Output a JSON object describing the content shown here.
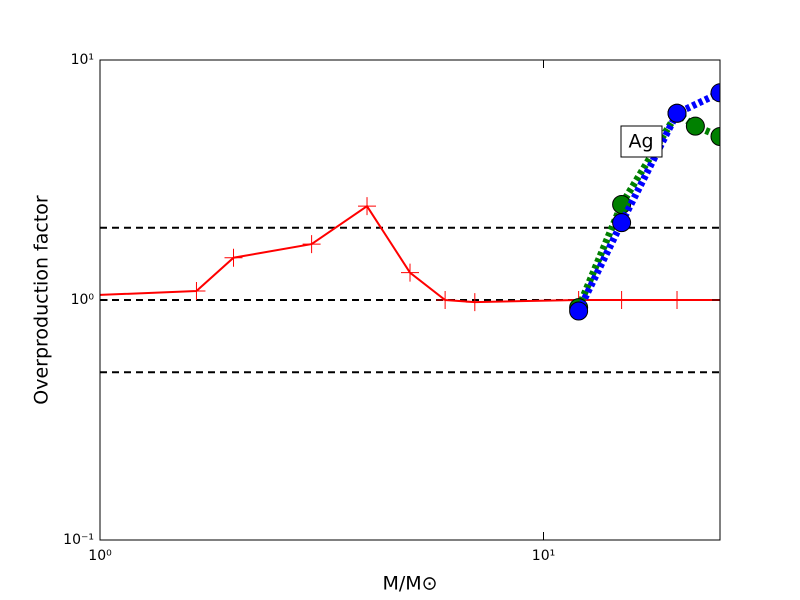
{
  "chart_data": {
    "type": "line",
    "x_label": "M/M⊙",
    "y_label": "Overproduction factor",
    "annotation": "Ag",
    "xscale": "log",
    "yscale": "log",
    "xlim": [
      1,
      25
    ],
    "ylim": [
      0.1,
      10
    ],
    "xticks": [
      {
        "value": 1,
        "label": "10⁰"
      },
      {
        "value": 10,
        "label": "10¹"
      }
    ],
    "yticks": [
      {
        "value": 0.1,
        "label": "10⁻¹"
      },
      {
        "value": 1,
        "label": "10⁰"
      },
      {
        "value": 10,
        "label": "10¹"
      }
    ],
    "reference_lines": [
      0.5,
      1,
      2
    ],
    "series": [
      {
        "color": "#ff0000",
        "marker": "plus",
        "linestyle": "solid",
        "x": [
          1,
          1.65,
          2,
          3,
          4,
          5,
          6,
          7,
          12,
          15,
          20,
          25
        ],
        "values": [
          1.05,
          1.09,
          1.5,
          1.71,
          2.46,
          1.3,
          1.0,
          0.98,
          1.0,
          1.0,
          1.0,
          1.0
        ]
      },
      {
        "color": "#008000",
        "marker": "circle",
        "linestyle": "dotted",
        "x": [
          12,
          15,
          20,
          22,
          25
        ],
        "values": [
          0.93,
          2.5,
          6.0,
          5.3,
          4.8
        ]
      },
      {
        "color": "#0000ff",
        "marker": "circle",
        "linestyle": "dotted",
        "x": [
          12,
          15,
          20,
          25
        ],
        "values": [
          0.9,
          2.1,
          6.0,
          7.3
        ]
      }
    ]
  }
}
